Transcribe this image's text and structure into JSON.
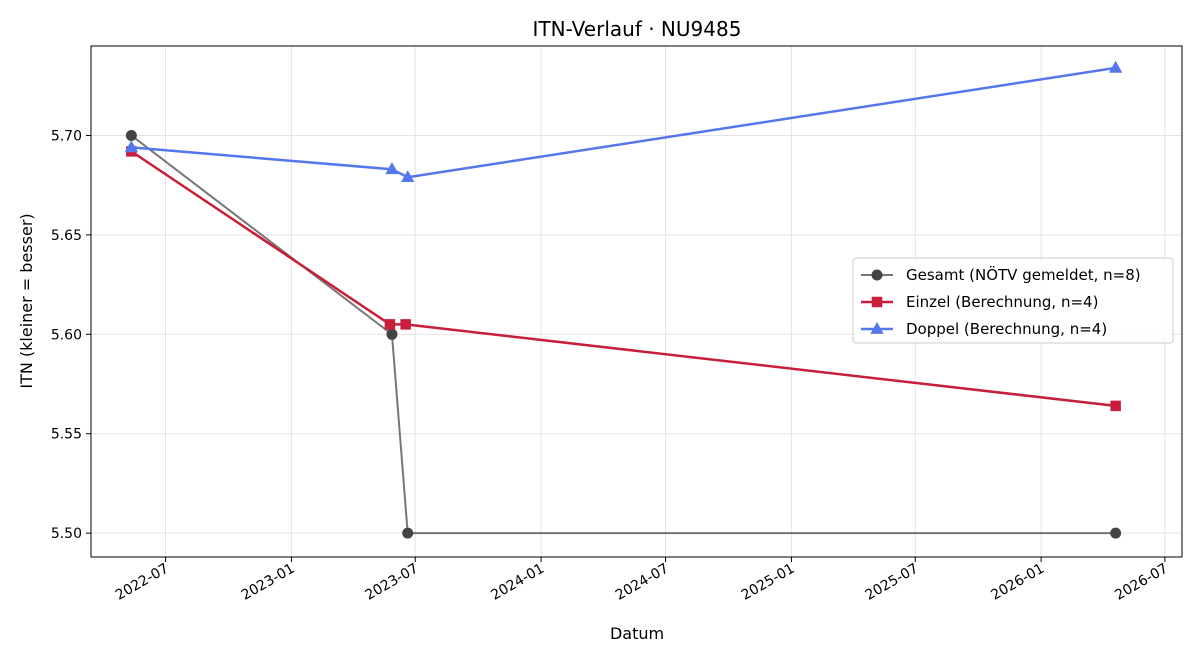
{
  "chart_data": {
    "type": "line",
    "title": "ITN-Verlauf · NU9485",
    "xlabel": "Datum",
    "ylabel": "ITN  (kleiner = besser)",
    "x_type": "date",
    "xlim": [
      "2022-03-14",
      "2026-07-26"
    ],
    "ylim": [
      5.488,
      5.745
    ],
    "x_ticks": [
      "2022-07-01",
      "2023-01-01",
      "2023-07-01",
      "2024-01-01",
      "2024-07-01",
      "2025-01-01",
      "2025-07-01",
      "2026-01-01",
      "2026-07-01"
    ],
    "x_tick_labels": [
      "2022-07",
      "2023-01",
      "2023-07",
      "2024-01",
      "2024-07",
      "2025-01",
      "2025-07",
      "2026-01",
      "2026-07"
    ],
    "y_ticks": [
      5.5,
      5.55,
      5.6,
      5.65,
      5.7
    ],
    "y_tick_labels": [
      "5.50",
      "5.55",
      "5.60",
      "5.65",
      "5.70"
    ],
    "grid": true,
    "legend_position": "center-right",
    "series": [
      {
        "name": "Gesamt (NÖTV gemeldet, n=8)",
        "color": "#555555",
        "marker": "circle",
        "points": [
          {
            "x": "2022-05-12",
            "y": 5.7
          },
          {
            "x": "2023-05-28",
            "y": 5.6
          },
          {
            "x": "2023-06-20",
            "y": 5.5
          },
          {
            "x": "2026-04-20",
            "y": 5.5
          }
        ]
      },
      {
        "name": "Einzel (Berechnung, n=4)",
        "color": "#c81e3c",
        "marker": "square",
        "points": [
          {
            "x": "2022-05-12",
            "y": 5.692
          },
          {
            "x": "2023-05-25",
            "y": 5.605
          },
          {
            "x": "2023-06-17",
            "y": 5.605
          },
          {
            "x": "2026-04-20",
            "y": 5.564
          }
        ]
      },
      {
        "name": "Doppel (Berechnung, n=4)",
        "color": "#5577ee",
        "marker": "triangle",
        "points": [
          {
            "x": "2022-05-12",
            "y": 5.694
          },
          {
            "x": "2023-05-28",
            "y": 5.683
          },
          {
            "x": "2023-06-20",
            "y": 5.679
          },
          {
            "x": "2026-04-20",
            "y": 5.734
          }
        ]
      }
    ]
  }
}
